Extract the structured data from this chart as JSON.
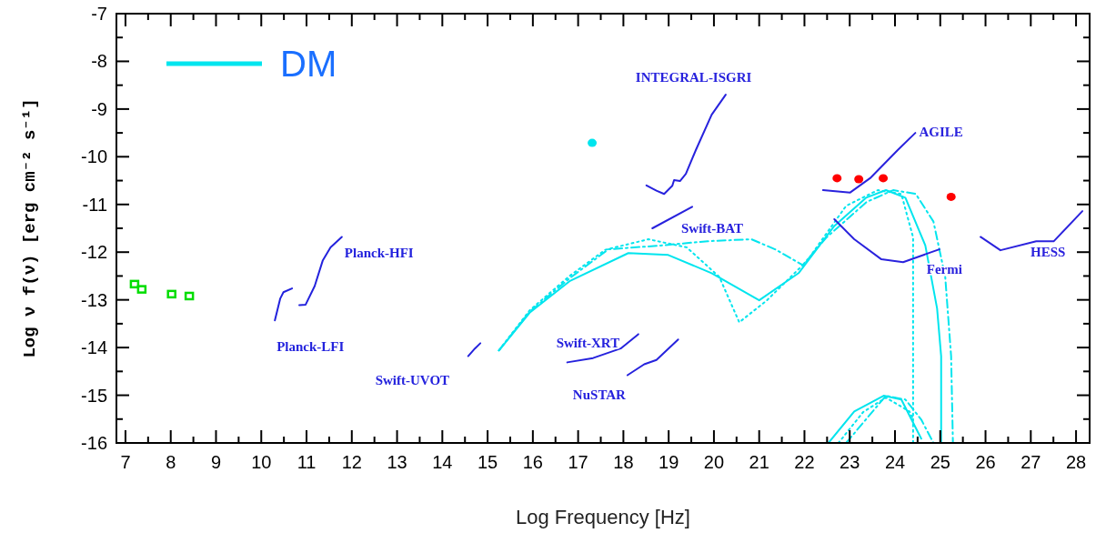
{
  "chart_data": {
    "type": "line",
    "xlabel": "Log Frequency [Hz]",
    "ylabel": "Log ν f(ν) [erg cm⁻² s⁻¹]",
    "xlim": [
      6.8,
      28.3
    ],
    "ylim": [
      -16,
      -7
    ],
    "xticks": [
      7,
      8,
      9,
      10,
      11,
      12,
      13,
      14,
      15,
      16,
      17,
      18,
      19,
      20,
      21,
      22,
      23,
      24,
      25,
      26,
      27,
      28
    ],
    "yticks": [
      -16,
      -15,
      -14,
      -13,
      -12,
      -11,
      -10,
      -9,
      -8,
      -7
    ],
    "grid": false,
    "legend": "top left",
    "series": [
      {
        "name": "DM",
        "line_style": "solid",
        "color": "#00e5ee",
        "x": [
          15.25,
          15.93,
          16.81,
          18.11,
          18.99,
          19.95,
          21.0,
          21.87,
          22.66,
          23.36,
          23.8,
          24.23,
          24.67,
          24.93,
          25.02,
          25.02
        ],
        "values": [
          -14.06,
          -13.27,
          -12.61,
          -12.02,
          -12.06,
          -12.44,
          -13.01,
          -12.44,
          -11.45,
          -10.86,
          -10.7,
          -10.86,
          -11.86,
          -13.18,
          -14.18,
          -16.0
        ]
      },
      {
        "line_style": "solid",
        "color": "#00e4ed",
        "x": [
          22.53,
          23.1,
          23.75,
          24.14,
          24.58
        ],
        "values": [
          -16.0,
          -15.34,
          -15.01,
          -15.09,
          -15.91
        ]
      },
      {
        "line_style": "dotted",
        "color": "#01e5ee",
        "x": [
          15.25,
          15.93,
          16.81,
          17.6,
          18.55,
          19.4,
          20.12,
          20.56,
          21.17,
          22.05,
          22.92,
          23.62,
          24.14,
          24.4,
          24.4
        ],
        "values": [
          -14.06,
          -13.22,
          -12.5,
          -11.95,
          -11.73,
          -11.9,
          -12.52,
          -13.47,
          -13.01,
          -12.19,
          -11.03,
          -10.7,
          -10.78,
          -11.69,
          -16.0
        ]
      },
      {
        "line_style": "dotted",
        "color": "#02e5ee",
        "x": [
          22.75,
          23.3,
          23.8,
          24.32,
          24.4
        ],
        "values": [
          -16.0,
          -15.35,
          -15.05,
          -15.34,
          -15.5
        ]
      },
      {
        "line_style": "dashed",
        "color": "#03e5ee",
        "x": [
          15.25,
          15.93,
          16.81,
          17.67,
          18.83,
          19.86,
          20.83,
          21.35,
          21.96,
          22.49,
          23.37,
          23.96,
          24.46,
          24.85,
          25.11,
          25.24,
          25.28
        ],
        "values": [
          -14.06,
          -13.25,
          -12.55,
          -11.94,
          -11.86,
          -11.77,
          -11.73,
          -11.94,
          -12.27,
          -11.69,
          -10.95,
          -10.7,
          -10.78,
          -11.36,
          -12.52,
          -14.18,
          -16.0
        ]
      },
      {
        "line_style": "dashed",
        "color": "#04e5ee",
        "x": [
          22.92,
          23.8,
          24.23,
          24.58,
          24.85
        ],
        "values": [
          -16.0,
          -15.01,
          -15.09,
          -15.51,
          -16.0
        ]
      },
      {
        "name": "Planck-LFI",
        "line_style": "solid",
        "color": "#2222dd",
        "x": [
          10.3,
          10.42,
          10.49,
          10.68
        ],
        "values": [
          -13.43,
          -12.97,
          -12.84,
          -12.76
        ]
      },
      {
        "name": "Planck-HFI",
        "line_style": "solid",
        "color": "#2322dd",
        "x": [
          10.84,
          10.98,
          11.18,
          11.36,
          11.53,
          11.78
        ],
        "values": [
          -13.11,
          -13.1,
          -12.71,
          -12.17,
          -11.9,
          -11.68
        ]
      },
      {
        "name": "Swift-UVOT",
        "line_style": "solid",
        "color": "#2422dd",
        "x": [
          14.57,
          14.72,
          14.84
        ],
        "values": [
          -14.18,
          -14.02,
          -13.91
        ]
      },
      {
        "name": "Swift-XRT",
        "line_style": "solid",
        "color": "#2522dd",
        "x": [
          16.76,
          17.33,
          17.94,
          18.33
        ],
        "values": [
          -14.31,
          -14.22,
          -14.02,
          -13.72
        ]
      },
      {
        "name": "NuSTAR",
        "line_style": "solid",
        "color": "#2622dd",
        "x": [
          18.09,
          18.46,
          18.73,
          19.21
        ],
        "values": [
          -14.58,
          -14.35,
          -14.26,
          -13.83
        ]
      },
      {
        "name": "INTEGRAL-ISGRI",
        "line_style": "solid",
        "color": "#2722dd",
        "x": [
          18.51,
          18.73,
          18.9,
          19.08,
          19.12,
          19.25,
          19.38,
          19.6,
          19.95,
          20.26
        ],
        "values": [
          -10.6,
          -10.71,
          -10.78,
          -10.61,
          -10.49,
          -10.51,
          -10.36,
          -9.86,
          -9.12,
          -8.7
        ]
      },
      {
        "name": "Swift-BAT",
        "line_style": "solid",
        "color": "#2822dd",
        "x": [
          18.64,
          19.52
        ],
        "values": [
          -11.5,
          -11.05
        ]
      },
      {
        "name": "AGILE",
        "line_style": "solid",
        "color": "#2922dd",
        "x": [
          22.41,
          23.01,
          23.45,
          24.06,
          24.45
        ],
        "values": [
          -10.7,
          -10.75,
          -10.45,
          -9.86,
          -9.5
        ]
      },
      {
        "name": "Fermi",
        "line_style": "solid",
        "color": "#2a22dd",
        "x": [
          22.66,
          23.1,
          23.7,
          24.18,
          24.98
        ],
        "values": [
          -11.31,
          -11.73,
          -12.15,
          -12.21,
          -11.94
        ]
      },
      {
        "name": "HESS",
        "line_style": "solid",
        "color": "#2b22dd",
        "x": [
          25.89,
          26.33,
          27.12,
          27.51,
          28.14
        ],
        "values": [
          -11.68,
          -11.96,
          -11.77,
          -11.77,
          -11.14
        ]
      },
      {
        "type": "scatter",
        "marker": "square",
        "color": "#00dd00",
        "x": [
          7.2,
          7.36,
          8.02,
          8.41
        ],
        "values": [
          -12.67,
          -12.78,
          -12.88,
          -12.92
        ]
      },
      {
        "type": "scatter",
        "marker": "circle",
        "color": "#00e5ee",
        "x": [
          17.31
        ],
        "values": [
          -9.71
        ]
      },
      {
        "type": "scatter",
        "marker": "circle",
        "color": "#ff0000",
        "x": [
          22.72,
          23.2,
          23.74,
          25.24
        ],
        "values": [
          -10.45,
          -10.47,
          -10.45,
          -10.84
        ]
      }
    ]
  }
}
